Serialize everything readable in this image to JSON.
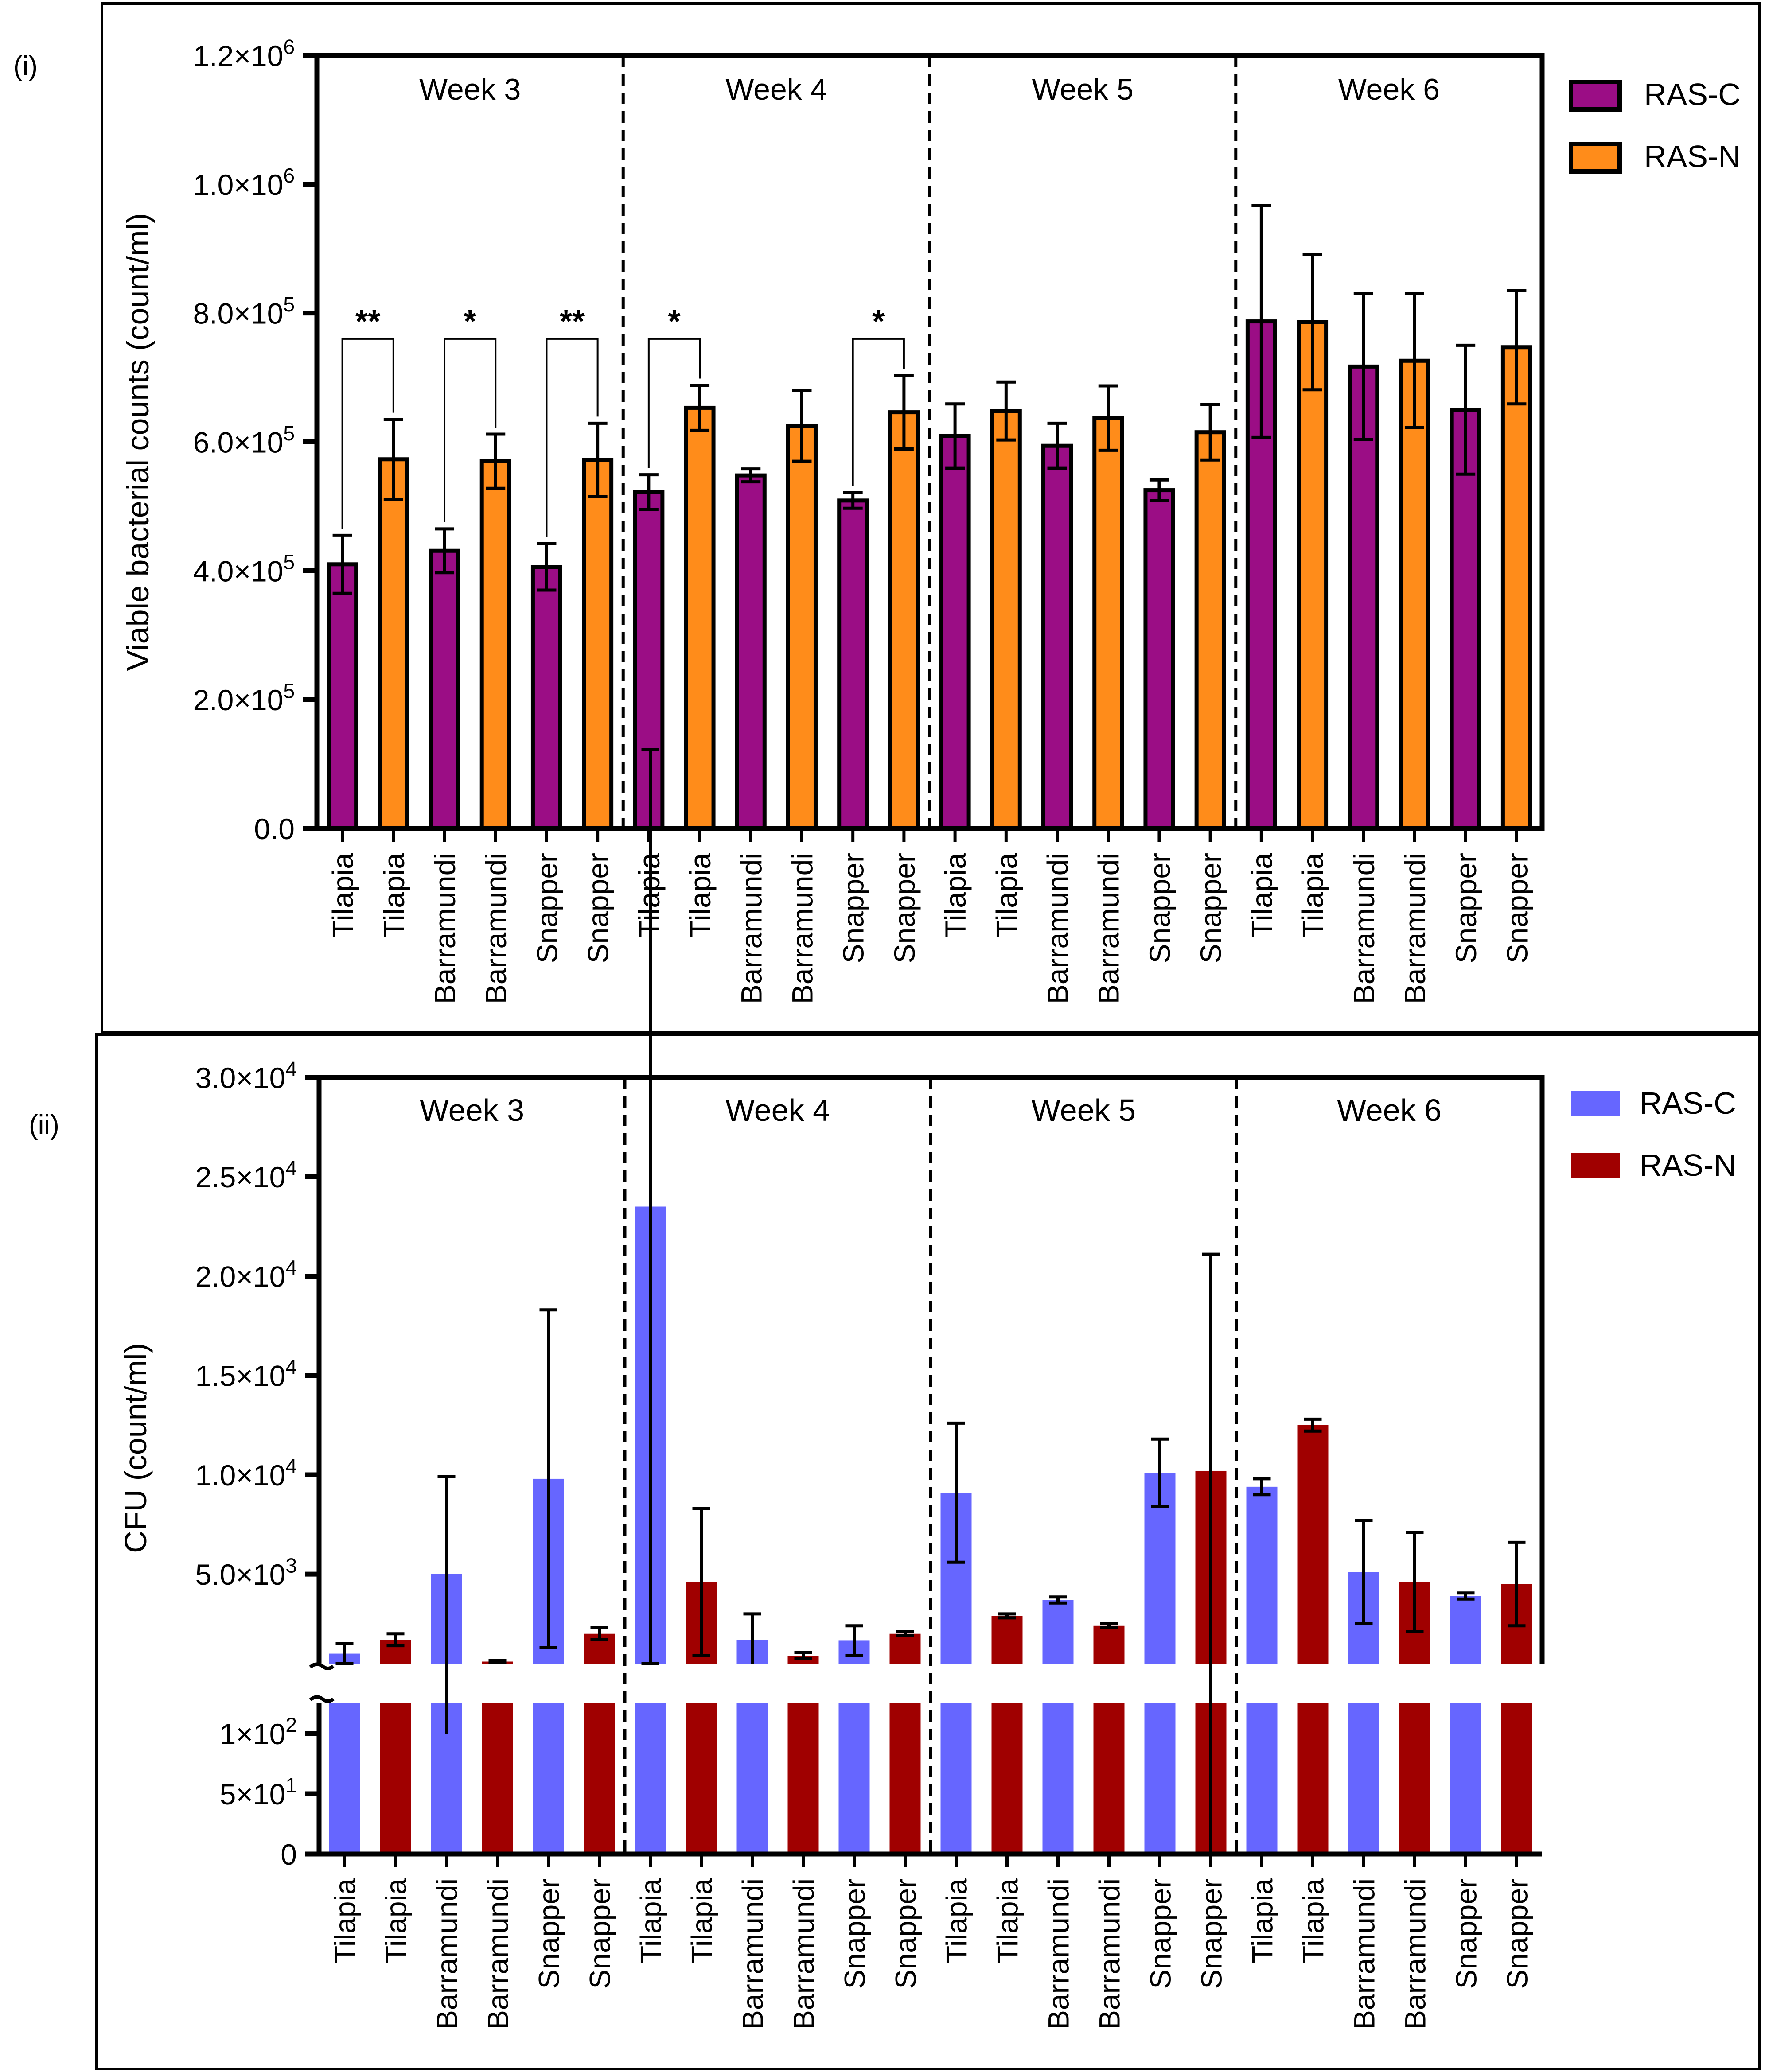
{
  "colors": {
    "ras_c_purple": "#9b0d85",
    "ras_n_orange": "#ff8c1a",
    "ras_c_blue": "#6666ff",
    "ras_n_red": "#a00000",
    "axis": "#000000"
  },
  "chart_data": [
    {
      "type": "bar",
      "panel_label": "(i)",
      "ylabel": "Viable bacterial counts (count/ml)",
      "ylim": [
        0,
        1200000
      ],
      "yticks": [
        {
          "value": 0,
          "label": "0.0"
        },
        {
          "value": 200000,
          "label": "2.0×10",
          "exp": "5"
        },
        {
          "value": 400000,
          "label": "4.0×10",
          "exp": "5"
        },
        {
          "value": 600000,
          "label": "6.0×10",
          "exp": "5"
        },
        {
          "value": 800000,
          "label": "8.0×10",
          "exp": "5"
        },
        {
          "value": 1000000,
          "label": "1.0×10",
          "exp": "6"
        },
        {
          "value": 1200000,
          "label": "1.2×10",
          "exp": "6"
        }
      ],
      "legend": [
        {
          "name": "RAS-C",
          "color": "#9b0d85"
        },
        {
          "name": "RAS-N",
          "color": "#ff8c1a"
        }
      ],
      "groups": [
        {
          "label": "Week 3",
          "bars": [
            {
              "category": "Tilapia",
              "series": "RAS-C",
              "value": 410000,
              "err": 45000
            },
            {
              "category": "Tilapia",
              "series": "RAS-N",
              "value": 573000,
              "err": 62000
            },
            {
              "category": "Barramundi",
              "series": "RAS-C",
              "value": 431000,
              "err": 34000
            },
            {
              "category": "Barramundi",
              "series": "RAS-N",
              "value": 570000,
              "err": 42000
            },
            {
              "category": "Snapper",
              "series": "RAS-C",
              "value": 406000,
              "err": 36000
            },
            {
              "category": "Snapper",
              "series": "RAS-N",
              "value": 572000,
              "err": 57000
            }
          ],
          "significance": [
            {
              "from": 0,
              "to": 1,
              "label": "**",
              "y": 760000
            },
            {
              "from": 2,
              "to": 3,
              "label": "*",
              "y": 760000
            },
            {
              "from": 4,
              "to": 5,
              "label": "**",
              "y": 760000
            }
          ]
        },
        {
          "label": "Week 4",
          "bars": [
            {
              "category": "Tilapia",
              "series": "RAS-C",
              "value": 522000,
              "err": 27000
            },
            {
              "category": "Tilapia",
              "series": "RAS-N",
              "value": 653000,
              "err": 35000
            },
            {
              "category": "Barramundi",
              "series": "RAS-C",
              "value": 548000,
              "err": 10000
            },
            {
              "category": "Barramundi",
              "series": "RAS-N",
              "value": 625000,
              "err": 55000
            },
            {
              "category": "Snapper",
              "series": "RAS-C",
              "value": 509000,
              "err": 12000
            },
            {
              "category": "Snapper",
              "series": "RAS-N",
              "value": 646000,
              "err": 57000
            }
          ],
          "significance": [
            {
              "from": 0,
              "to": 1,
              "label": "*",
              "y": 760000
            },
            {
              "from": 4,
              "to": 5,
              "label": "*",
              "y": 760000
            }
          ]
        },
        {
          "label": "Week 5",
          "bars": [
            {
              "category": "Tilapia",
              "series": "RAS-C",
              "value": 609000,
              "err": 50000
            },
            {
              "category": "Tilapia",
              "series": "RAS-N",
              "value": 648000,
              "err": 45000
            },
            {
              "category": "Barramundi",
              "series": "RAS-C",
              "value": 594000,
              "err": 35000
            },
            {
              "category": "Barramundi",
              "series": "RAS-N",
              "value": 637000,
              "err": 50000
            },
            {
              "category": "Snapper",
              "series": "RAS-C",
              "value": 525000,
              "err": 16000
            },
            {
              "category": "Snapper",
              "series": "RAS-N",
              "value": 615000,
              "err": 43000
            }
          ],
          "significance": []
        },
        {
          "label": "Week 6",
          "bars": [
            {
              "category": "Tilapia",
              "series": "RAS-C",
              "value": 787000,
              "err": 180000
            },
            {
              "category": "Tilapia",
              "series": "RAS-N",
              "value": 786000,
              "err": 105000
            },
            {
              "category": "Barramundi",
              "series": "RAS-C",
              "value": 717000,
              "err": 113000
            },
            {
              "category": "Barramundi",
              "series": "RAS-N",
              "value": 726000,
              "err": 104000
            },
            {
              "category": "Snapper",
              "series": "RAS-C",
              "value": 650000,
              "err": 100000
            },
            {
              "category": "Snapper",
              "series": "RAS-N",
              "value": 747000,
              "err": 88000
            }
          ],
          "significance": []
        }
      ]
    },
    {
      "type": "bar",
      "panel_label": "(ii)",
      "ylabel": "CFU (count/ml)",
      "axis_break": true,
      "lower_ylim": [
        0,
        125
      ],
      "upper_ylim": [
        500,
        30000
      ],
      "yticks_lower": [
        {
          "value": 0,
          "label": "0"
        },
        {
          "value": 50,
          "label": "5×10",
          "exp": "1"
        },
        {
          "value": 100,
          "label": "1×10",
          "exp": "2"
        }
      ],
      "yticks_upper": [
        {
          "value": 5000,
          "label": "5.0×10",
          "exp": "3"
        },
        {
          "value": 10000,
          "label": "1.0×10",
          "exp": "4"
        },
        {
          "value": 15000,
          "label": "1.5×10",
          "exp": "4"
        },
        {
          "value": 20000,
          "label": "2.0×10",
          "exp": "4"
        },
        {
          "value": 25000,
          "label": "2.5×10",
          "exp": "4"
        },
        {
          "value": 30000,
          "label": "3.0×10",
          "exp": "4"
        }
      ],
      "legend": [
        {
          "name": "RAS-C",
          "color": "#6666ff"
        },
        {
          "name": "RAS-N",
          "color": "#a00000"
        }
      ],
      "groups": [
        {
          "label": "Week 3",
          "bars": [
            {
              "category": "Tilapia",
              "series": "RAS-C",
              "value": 1000,
              "err": 500
            },
            {
              "category": "Tilapia",
              "series": "RAS-N",
              "value": 1700,
              "err": 300
            },
            {
              "category": "Barramundi",
              "series": "RAS-C",
              "value": 5000,
              "err": 4900
            },
            {
              "category": "Barramundi",
              "series": "RAS-N",
              "value": 600,
              "err": 50
            },
            {
              "category": "Snapper",
              "series": "RAS-C",
              "value": 9800,
              "err": 8500
            },
            {
              "category": "Snapper",
              "series": "RAS-N",
              "value": 2000,
              "err": 300
            }
          ]
        },
        {
          "label": "Week 4",
          "bars": [
            {
              "category": "Tilapia",
              "series": "RAS-C",
              "value": 23500,
              "err": 23000
            },
            {
              "category": "Tilapia",
              "series": "RAS-N",
              "value": 4600,
              "err": 3700
            },
            {
              "category": "Barramundi",
              "series": "RAS-C",
              "value": 1700,
              "err": 1300
            },
            {
              "category": "Barramundi",
              "series": "RAS-N",
              "value": 900,
              "err": 150
            },
            {
              "category": "Snapper",
              "series": "RAS-C",
              "value": 1650,
              "err": 750
            },
            {
              "category": "Snapper",
              "series": "RAS-N",
              "value": 2000,
              "err": 100
            }
          ]
        },
        {
          "label": "Week 5",
          "bars": [
            {
              "category": "Tilapia",
              "series": "RAS-C",
              "value": 9100,
              "err": 3500
            },
            {
              "category": "Tilapia",
              "series": "RAS-N",
              "value": 2900,
              "err": 100
            },
            {
              "category": "Barramundi",
              "series": "RAS-C",
              "value": 3700,
              "err": 150
            },
            {
              "category": "Barramundi",
              "series": "RAS-N",
              "value": 2400,
              "err": 100
            },
            {
              "category": "Snapper",
              "series": "RAS-C",
              "value": 10100,
              "err": 1700
            },
            {
              "category": "Snapper",
              "series": "RAS-N",
              "value": 10200,
              "err": 10900
            }
          ]
        },
        {
          "label": "Week 6",
          "bars": [
            {
              "category": "Tilapia",
              "series": "RAS-C",
              "value": 9400,
              "err": 400
            },
            {
              "category": "Tilapia",
              "series": "RAS-N",
              "value": 12500,
              "err": 300
            },
            {
              "category": "Barramundi",
              "series": "RAS-C",
              "value": 5100,
              "err": 2600
            },
            {
              "category": "Barramundi",
              "series": "RAS-N",
              "value": 4600,
              "err": 2500
            },
            {
              "category": "Snapper",
              "series": "RAS-C",
              "value": 3900,
              "err": 150
            },
            {
              "category": "Snapper",
              "series": "RAS-N",
              "value": 4500,
              "err": 2100
            }
          ]
        }
      ]
    }
  ]
}
